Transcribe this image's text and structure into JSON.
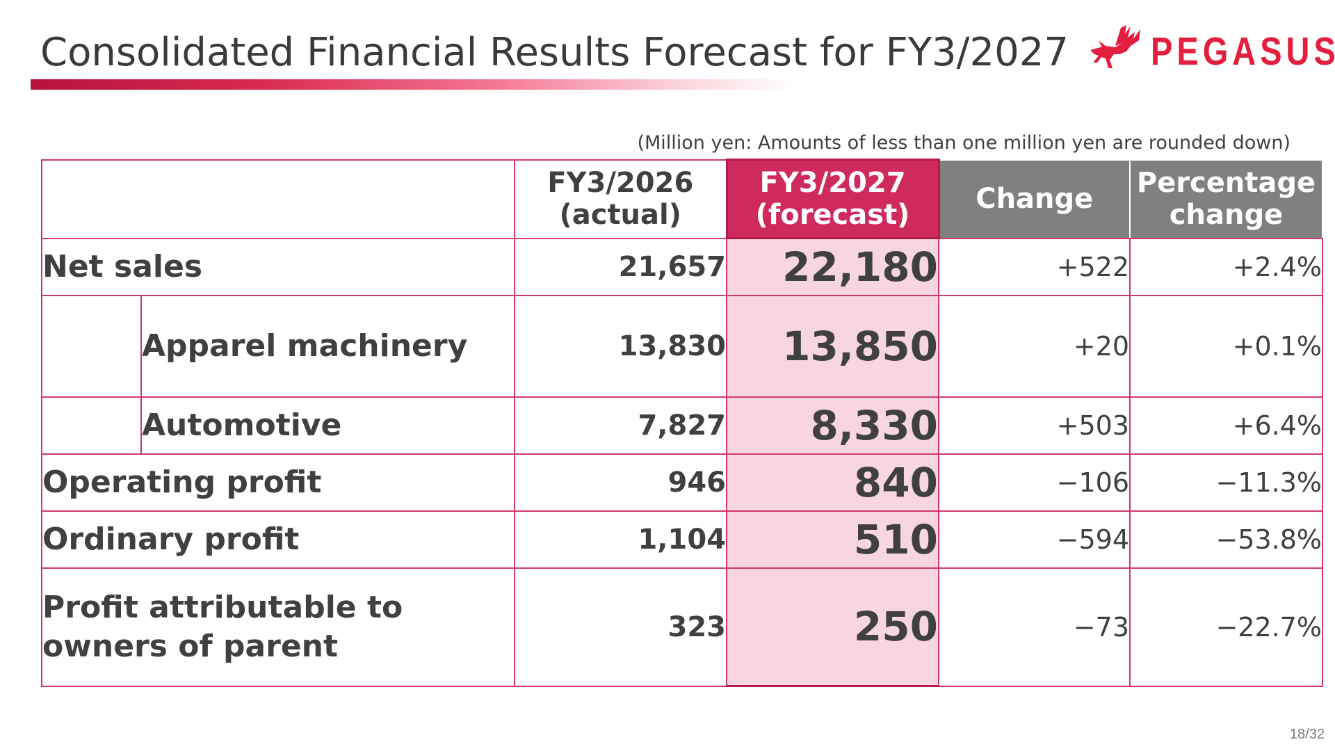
{
  "slide": {
    "title": "Consolidated Financial Results Forecast for FY3/2027",
    "unit_note": "(Million yen: Amounts of less than one million yen are rounded down)",
    "page_number": "18/32"
  },
  "logo": {
    "text": "PEGASUS",
    "icon": "pegasus-icon",
    "color": "#e31e3e"
  },
  "colors": {
    "accent": "#cf2a5d",
    "forecast_fill": "#f7d5e1",
    "header_grey": "#808080",
    "grid_line": "#d2386a"
  },
  "table": {
    "headers": {
      "actual": [
        "FY3/2026",
        "(actual)"
      ],
      "forecast": [
        "FY3/2027",
        "(forecast)"
      ],
      "change": [
        "Change"
      ],
      "percentage": [
        "Percentage",
        "change"
      ]
    },
    "rows": [
      {
        "label": "Net sales",
        "actual": "21,657",
        "forecast": "22,180",
        "change": "+522",
        "percentage": "+2.4%"
      },
      {
        "label": "Apparel machinery",
        "actual": "13,830",
        "forecast": "13,850",
        "change": "+20",
        "percentage": "+0.1%"
      },
      {
        "label": "Automotive",
        "actual": "7,827",
        "forecast": "8,330",
        "change": "+503",
        "percentage": "+6.4%"
      },
      {
        "label": "Operating profit",
        "actual": "946",
        "forecast": "840",
        "change": "−106",
        "percentage": "−11.3%"
      },
      {
        "label": "Ordinary profit",
        "actual": "1,104",
        "forecast": "510",
        "change": "−594",
        "percentage": "−53.8%"
      },
      {
        "label": [
          "Profit attributable to",
          "owners of parent"
        ],
        "actual": "323",
        "forecast": "250",
        "change": "−73",
        "percentage": "−22.7%"
      }
    ]
  }
}
